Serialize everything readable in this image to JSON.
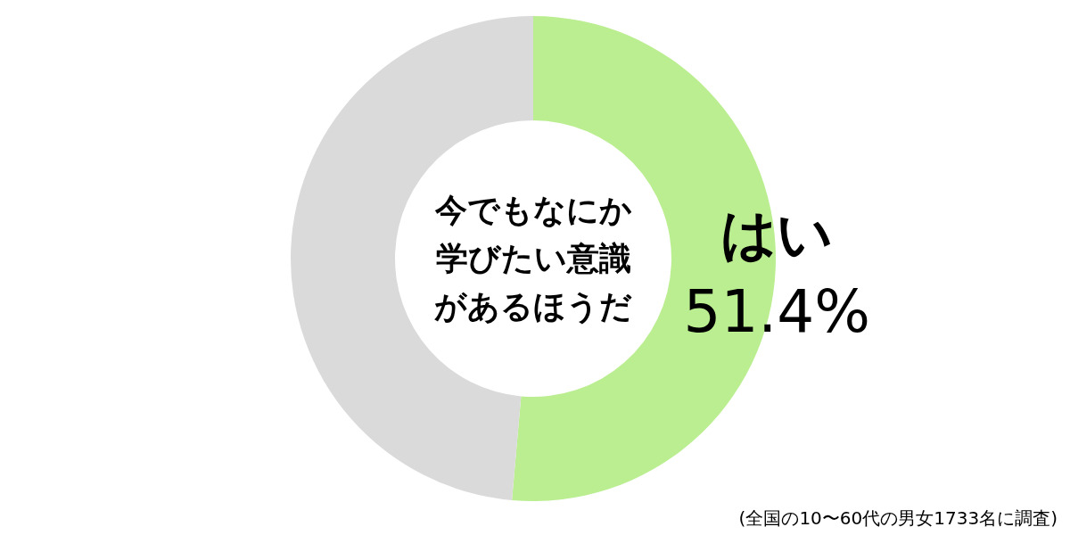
{
  "chart_data": {
    "type": "donut",
    "title": "今でもなにか学びたい意識があるほうだ",
    "categories": [
      "はい",
      null
    ],
    "values": [
      51.4,
      48.6
    ],
    "colors": [
      "#bbee91",
      "#dadada"
    ],
    "value_labels": [
      "51.4%",
      null
    ],
    "annotations": [
      "(全国の10〜60代の男女1733名に調査)"
    ]
  }
}
